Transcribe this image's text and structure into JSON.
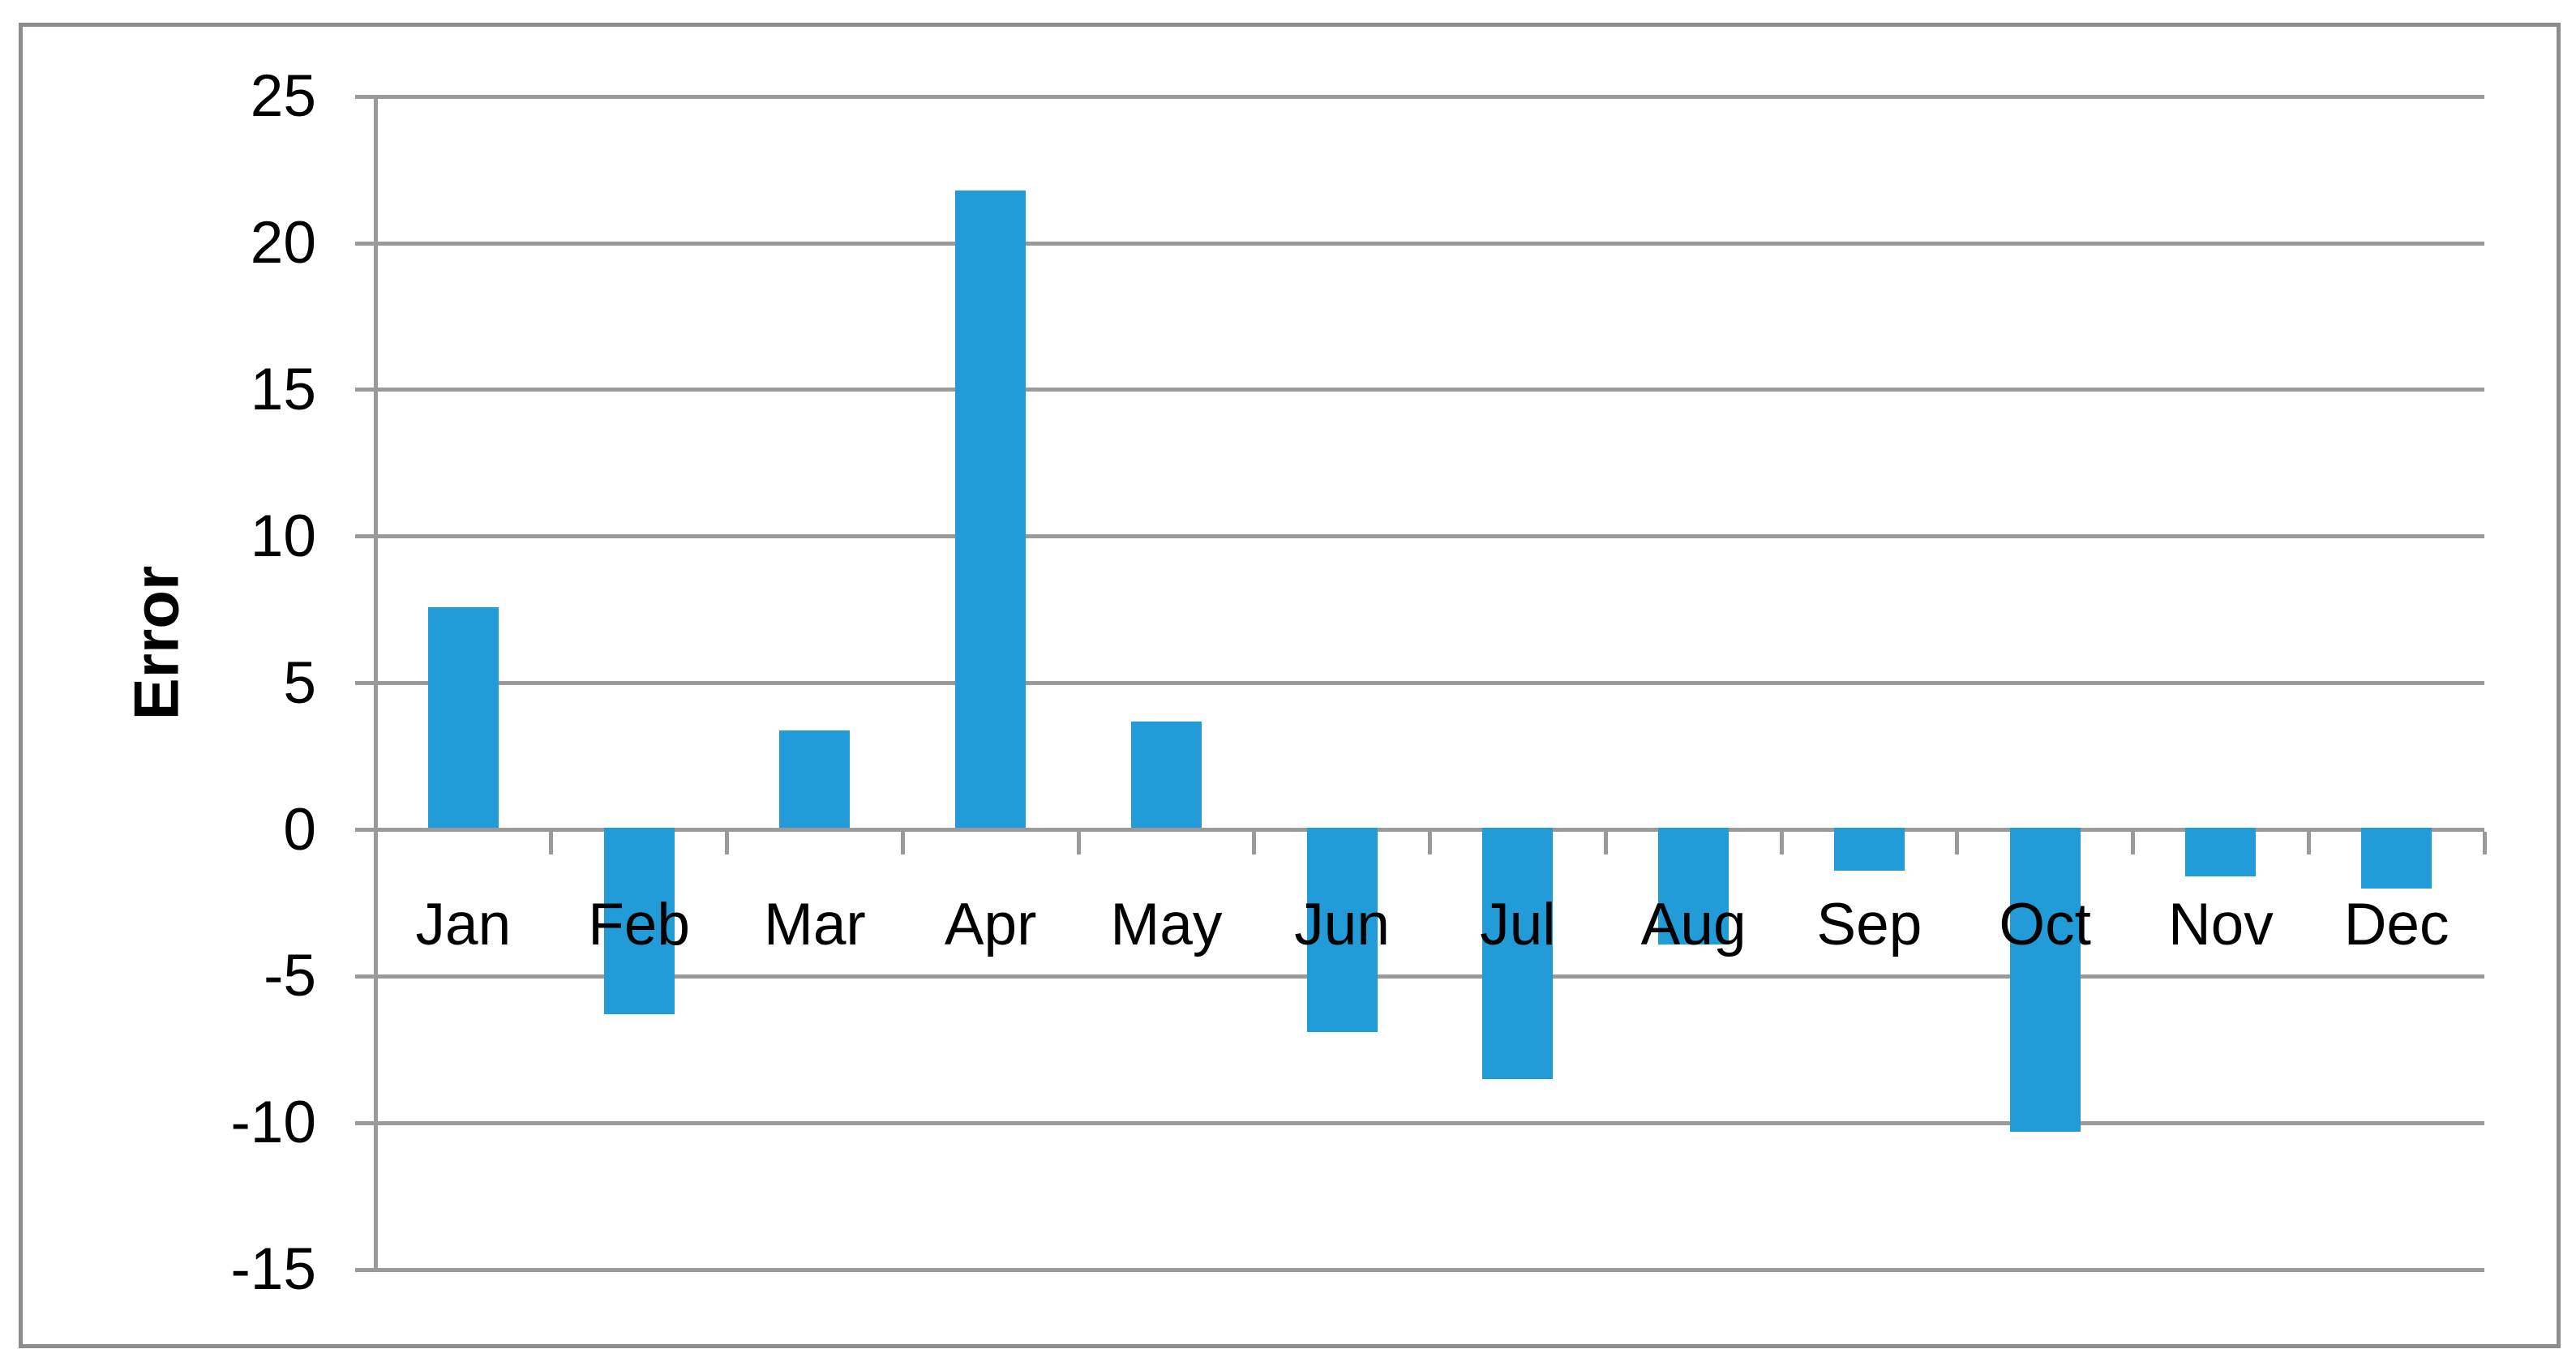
{
  "chart_data": {
    "type": "bar",
    "title": "",
    "ylabel": "Error",
    "xlabel": "",
    "categories": [
      "Jan",
      "Feb",
      "Mar",
      "Apr",
      "May",
      "Jun",
      "Jul",
      "Aug",
      "Sep",
      "Oct",
      "Nov",
      "Dec"
    ],
    "values": [
      7.6,
      -6.3,
      3.4,
      21.8,
      3.7,
      -6.9,
      -8.5,
      -3.9,
      -1.4,
      -10.3,
      -1.6,
      -2.0
    ],
    "yticks": [
      25,
      20,
      15,
      10,
      5,
      0,
      -5,
      -10,
      -15
    ],
    "ylim": [
      -15,
      25
    ],
    "grid": "horizontal",
    "legend": "none",
    "bar_color": "#219cd8",
    "grid_color": "#9a9a9a",
    "axis_color": "#9a9a9a",
    "frame_color": "#8d8d8d",
    "text_color": "#000000"
  }
}
